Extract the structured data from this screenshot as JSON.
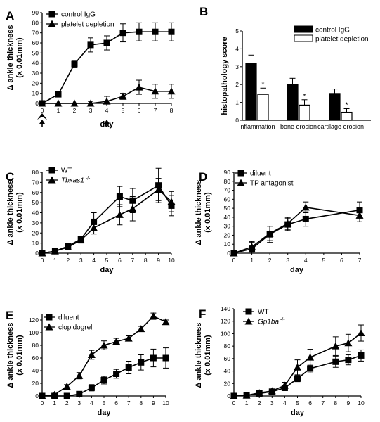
{
  "chart_data": [
    {
      "panel": "A",
      "type": "line",
      "xlabel": "day",
      "ylabel": [
        "Δ ankle thickness",
        "(x 0.01mm)"
      ],
      "xlim": [
        0,
        8
      ],
      "ylim": [
        0,
        90
      ],
      "xticks": [
        0,
        1,
        2,
        3,
        4,
        5,
        6,
        7,
        8
      ],
      "yticks": [
        0,
        10,
        20,
        30,
        40,
        50,
        60,
        70,
        80,
        90
      ],
      "arrow_days": [
        0,
        4
      ],
      "arrowhead_days": [
        0
      ],
      "legend_position": "top-left",
      "series": [
        {
          "name": "control IgG",
          "marker": "square",
          "x": [
            0,
            1,
            2,
            3,
            4,
            5,
            6,
            7,
            8
          ],
          "y": [
            0,
            9,
            39,
            58,
            60,
            70,
            71,
            71,
            71
          ],
          "err": [
            0,
            2,
            3,
            7,
            7,
            9,
            9,
            9,
            9
          ]
        },
        {
          "name": "platelet depletion",
          "marker": "triangle",
          "x": [
            0,
            1,
            2,
            3,
            4,
            5,
            6,
            7,
            8
          ],
          "y": [
            0,
            0,
            0,
            0,
            2,
            7,
            16,
            12,
            12
          ],
          "err": [
            0,
            0,
            0,
            2,
            5,
            3,
            7,
            7,
            7
          ]
        }
      ]
    },
    {
      "panel": "B",
      "type": "bar",
      "ylabel": "histopathology score",
      "ylim": [
        0,
        5
      ],
      "yticks": [
        0,
        1,
        2,
        3,
        4,
        5
      ],
      "categories": [
        "inflammation",
        "bone erosion",
        "cartilage erosion"
      ],
      "significance_marker": "*",
      "legend_position": "top-right",
      "series": [
        {
          "name": "control IgG",
          "fill": "#000000",
          "values": [
            3.2,
            2.0,
            1.5
          ],
          "err": [
            0.45,
            0.35,
            0.25
          ]
        },
        {
          "name": "platelet depletion",
          "fill": "#ffffff",
          "values": [
            1.45,
            0.85,
            0.45
          ],
          "err": [
            0.35,
            0.3,
            0.2
          ]
        }
      ]
    },
    {
      "panel": "C",
      "type": "line",
      "xlabel": "day",
      "ylabel": [
        "Δ ankle thickness",
        "(x 0.01mm)"
      ],
      "xlim": [
        0,
        10
      ],
      "ylim": [
        0,
        80
      ],
      "xticks": [
        0,
        1,
        2,
        3,
        4,
        5,
        6,
        7,
        8,
        9,
        10
      ],
      "yticks": [
        0,
        10,
        20,
        30,
        40,
        50,
        60,
        70,
        80
      ],
      "legend_position": "top-left",
      "series": [
        {
          "name": "WT",
          "marker": "square",
          "x": [
            0,
            1,
            2,
            3,
            4,
            6,
            7,
            9,
            10
          ],
          "y": [
            0,
            2,
            7,
            14,
            31,
            56,
            52,
            67,
            47
          ],
          "err": [
            0,
            1,
            2,
            3,
            9,
            10,
            12,
            17,
            10
          ]
        },
        {
          "name": "Tbxas1",
          "name_sup": "-/-",
          "name_italic": true,
          "marker": "triangle",
          "x": [
            0,
            1,
            2,
            3,
            4,
            6,
            7,
            9,
            10
          ],
          "y": [
            0,
            2,
            6,
            13,
            25,
            38,
            44,
            63,
            51
          ],
          "err": [
            0,
            1,
            2,
            3,
            6,
            10,
            12,
            11,
            10
          ]
        }
      ]
    },
    {
      "panel": "D",
      "type": "line",
      "xlabel": "day",
      "ylabel": [
        "Δ ankle thickness",
        "(x 0.01mm)"
      ],
      "xlim": [
        0,
        7
      ],
      "ylim": [
        0,
        90
      ],
      "xticks": [
        0,
        1,
        2,
        3,
        4,
        5,
        6,
        7
      ],
      "yticks": [
        0,
        10,
        20,
        30,
        40,
        50,
        60,
        70,
        80,
        90
      ],
      "legend_position": "top-left",
      "series": [
        {
          "name": "diluent",
          "marker": "square",
          "x": [
            0,
            1,
            2,
            3,
            4,
            7
          ],
          "y": [
            0,
            5,
            21,
            32,
            38,
            48
          ],
          "err": [
            0,
            7,
            9,
            7,
            8,
            9
          ]
        },
        {
          "name": "TP antagonist",
          "marker": "triangle",
          "x": [
            0,
            1,
            2,
            3,
            4,
            7
          ],
          "y": [
            0,
            7,
            22,
            33,
            51,
            42
          ],
          "err": [
            0,
            6,
            8,
            7,
            6,
            7
          ]
        }
      ]
    },
    {
      "panel": "E",
      "type": "line",
      "xlabel": "day",
      "ylabel": [
        "Δ ankle thickness",
        "(x 0.01mm)"
      ],
      "xlim": [
        0,
        10
      ],
      "ylim": [
        0,
        130
      ],
      "xticks": [
        0,
        1,
        2,
        3,
        4,
        5,
        6,
        7,
        8,
        9,
        10
      ],
      "yticks": [
        0,
        20,
        40,
        60,
        80,
        100,
        120
      ],
      "legend_position": "top-left",
      "series": [
        {
          "name": "diluent",
          "marker": "square",
          "x": [
            0,
            1,
            2,
            3,
            4,
            5,
            6,
            7,
            8,
            9,
            10
          ],
          "y": [
            0,
            0,
            0,
            3,
            13,
            25,
            35,
            45,
            53,
            60,
            60
          ],
          "err": [
            0,
            0,
            2,
            3,
            5,
            6,
            7,
            10,
            12,
            14,
            16
          ]
        },
        {
          "name": "clopidogrel",
          "marker": "triangle",
          "x": [
            0,
            1,
            2,
            3,
            4,
            5,
            6,
            7,
            8,
            9,
            10
          ],
          "y": [
            0,
            2,
            15,
            32,
            65,
            80,
            86,
            91,
            106,
            126,
            117
          ],
          "err": [
            0,
            1,
            3,
            5,
            7,
            7,
            5,
            4,
            4,
            5,
            3
          ]
        }
      ]
    },
    {
      "panel": "F",
      "type": "line",
      "xlabel": "day",
      "ylabel": [
        "Δ ankle thickness",
        "(x 0.01mm)"
      ],
      "xlim": [
        0,
        10
      ],
      "ylim": [
        0,
        140
      ],
      "xticks": [
        0,
        1,
        2,
        3,
        4,
        5,
        6,
        7,
        8,
        9,
        10
      ],
      "yticks": [
        0,
        20,
        40,
        60,
        80,
        100,
        120,
        140
      ],
      "legend_position": "top-left",
      "series": [
        {
          "name": "WT",
          "marker": "square",
          "x": [
            0,
            1,
            2,
            3,
            4,
            5,
            6,
            8,
            9,
            10
          ],
          "y": [
            0,
            1,
            4,
            7,
            13,
            28,
            44,
            55,
            58,
            65
          ],
          "err": [
            0,
            1,
            2,
            2,
            4,
            5,
            7,
            9,
            8,
            9
          ]
        },
        {
          "name": "Gp1ba",
          "name_sup": "-/-",
          "name_italic": true,
          "marker": "triangle",
          "x": [
            0,
            1,
            2,
            3,
            4,
            5,
            6,
            8,
            9,
            10
          ],
          "y": [
            0,
            1,
            5,
            8,
            17,
            46,
            62,
            80,
            85,
            101
          ],
          "err": [
            0,
            1,
            2,
            3,
            5,
            12,
            13,
            15,
            14,
            13
          ]
        }
      ]
    }
  ]
}
